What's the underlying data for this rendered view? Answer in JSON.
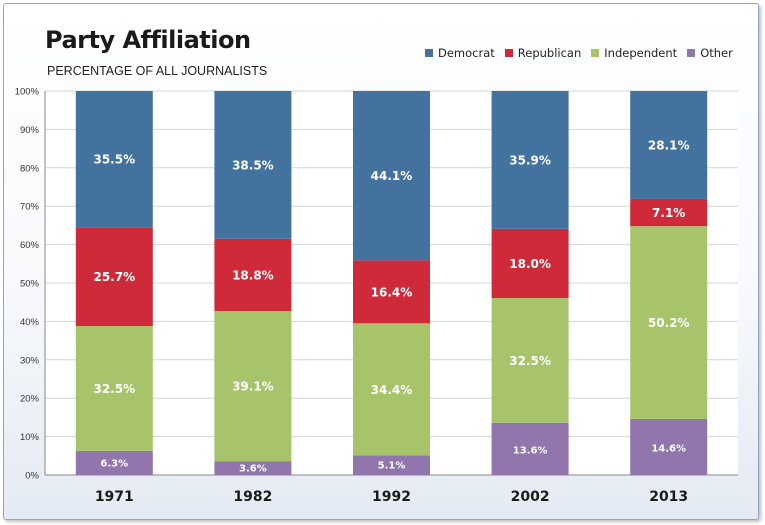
{
  "chart_data": {
    "type": "bar",
    "stacked": true,
    "title": "Party Affiliation",
    "subtitle": "PERCENTAGE OF ALL JOURNALISTS",
    "categories": [
      "1971",
      "1982",
      "1992",
      "2002",
      "2013"
    ],
    "series": [
      {
        "name": "Other",
        "color": "#9076ad",
        "values": [
          6.3,
          3.6,
          5.1,
          13.6,
          14.6
        ],
        "labels": [
          "6.3%",
          "3.6%",
          "5.1%",
          "13.6%",
          "14.6%"
        ]
      },
      {
        "name": "Independent",
        "color": "#a7c46b",
        "values": [
          32.5,
          39.1,
          34.4,
          32.5,
          50.2
        ],
        "labels": [
          "32.5%",
          "39.1%",
          "34.4%",
          "32.5%",
          "50.2%"
        ]
      },
      {
        "name": "Republican",
        "color": "#cf2a3a",
        "values": [
          25.7,
          18.8,
          16.4,
          18.0,
          7.1
        ],
        "labels": [
          "25.7%",
          "18.8%",
          "16.4%",
          "18.0%",
          "7.1%"
        ]
      },
      {
        "name": "Democrat",
        "color": "#43729f",
        "values": [
          35.5,
          38.5,
          44.1,
          35.9,
          28.1
        ],
        "labels": [
          "35.5%",
          "38.5%",
          "44.1%",
          "35.9%",
          "28.1%"
        ]
      }
    ],
    "legend_order": [
      "Democrat",
      "Republican",
      "Independent",
      "Other"
    ],
    "yticks": [
      "0%",
      "10%",
      "20%",
      "30%",
      "40%",
      "50%",
      "60%",
      "70%",
      "80%",
      "90%",
      "100%"
    ],
    "ylim": [
      0,
      100
    ],
    "grid": true,
    "legend_position": "top-right"
  }
}
